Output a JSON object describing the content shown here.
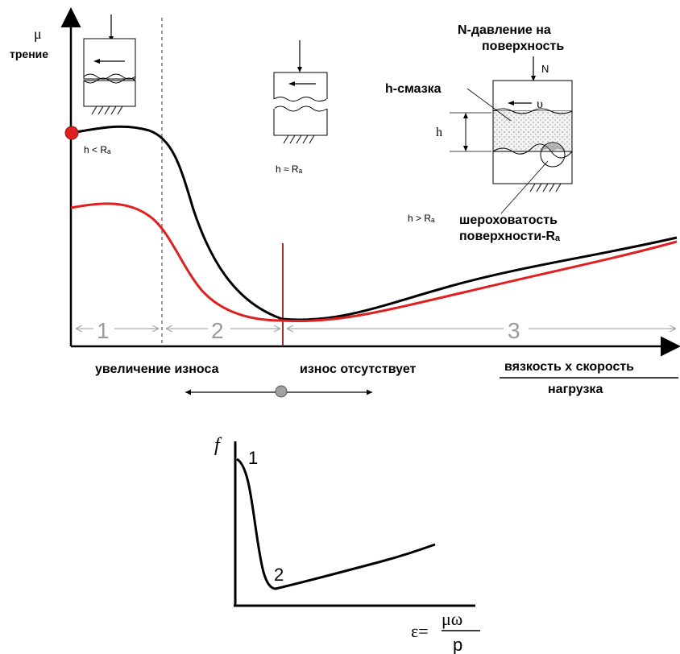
{
  "top_chart": {
    "y_axis_symbol": "μ",
    "y_axis_label": "трение",
    "x_axis_numerator": "вязкость x скорость",
    "x_axis_denominator": "нагрузка",
    "regions": [
      "1",
      "2",
      "3"
    ],
    "bottom_left_label": "увеличение износа",
    "bottom_right_label": "износ отсутствует",
    "inset1_label": "h < Rₐ",
    "inset2_label": "h ≈ Rₐ",
    "inset3": {
      "pressure_label_line1": "N-давление на",
      "pressure_label_line2": "поверхность",
      "force_symbol": "N",
      "velocity_symbol": "υ",
      "lubricant_label": "h-смазка",
      "thickness_symbol": "h",
      "condition_label": "h > Rₐ",
      "roughness_label_line1": "шероховатость",
      "roughness_label_line2": "поверхности-Rₐ"
    },
    "colors": {
      "black_curve": "#000000",
      "red_curve": "#e02020",
      "marker": "#e02020",
      "divider": "#8b1a1a",
      "ball": "#a0a0a0"
    }
  },
  "bottom_chart": {
    "y_axis_symbol": "f",
    "point1_label": "1",
    "point2_label": "2",
    "x_axis_prefix": "ε=",
    "x_axis_numerator": "μω",
    "x_axis_denominator": "p"
  }
}
